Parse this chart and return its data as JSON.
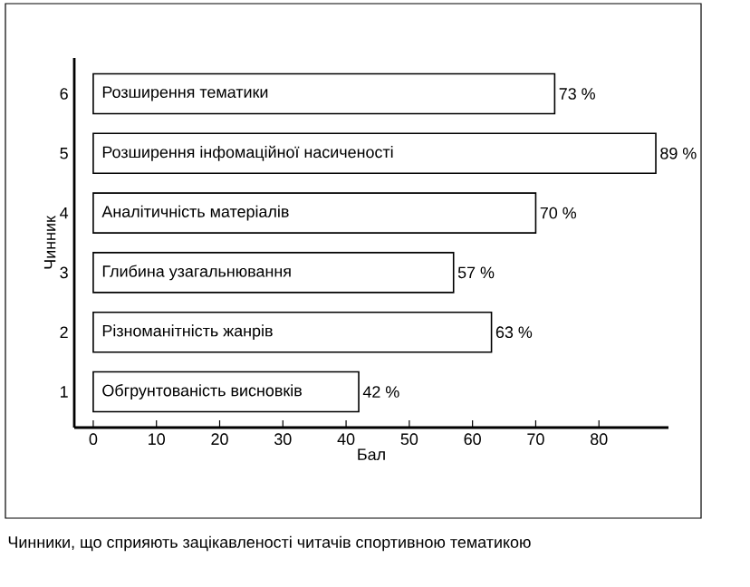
{
  "chart_data": {
    "type": "bar",
    "orientation": "horizontal",
    "categories": [
      "6",
      "5",
      "4",
      "3",
      "2",
      "1"
    ],
    "values": [
      73,
      89,
      70,
      57,
      63,
      42
    ],
    "value_labels": [
      "73 %",
      "89 %",
      "70 %",
      "57 %",
      "63 %",
      "42 %"
    ],
    "color": "#ffffff",
    "xlim": [
      -3,
      91
    ],
    "xticks": [
      0,
      10,
      20,
      30,
      40,
      50,
      60,
      70,
      80
    ],
    "xlabel": "Бал",
    "ylabel": "Чинник",
    "annotations": [
      {
        "text": "Розширення тематики",
        "y": "6"
      },
      {
        "text": "Розширення інфомаційної насиченості",
        "y": "5"
      },
      {
        "text": "Аналітичність матеріалів",
        "y": "4"
      },
      {
        "text": "Глибина узагальнювання",
        "y": "3"
      },
      {
        "text": "Різноманітність жанрів",
        "y": "2"
      },
      {
        "text": "Обгрунтованість висновків",
        "y": "1"
      },
      "Чинники, що сприяють зацікавленості читачів спортивною тематикою"
    ]
  }
}
